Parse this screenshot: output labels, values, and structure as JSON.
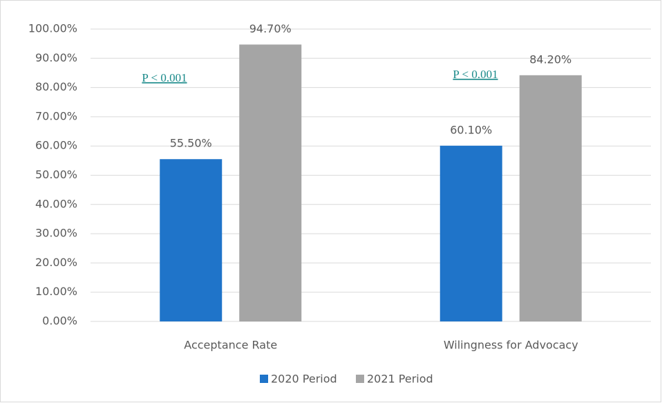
{
  "chart_data": {
    "type": "bar",
    "categories": [
      "Acceptance Rate",
      "Wilingness for Advocacy"
    ],
    "series": [
      {
        "name": "2020 Period",
        "color": "#1f74c9",
        "values": [
          55.5,
          60.1
        ],
        "value_labels": [
          "55.50%",
          "60.10%"
        ]
      },
      {
        "name": "2021 Period",
        "color": "#a5a5a5",
        "values": [
          94.7,
          84.2
        ],
        "value_labels": [
          "94.70%",
          "84.20%"
        ]
      }
    ],
    "annotations": [
      "P < 0.001",
      "P < 0.001"
    ],
    "ylim": [
      0,
      100
    ],
    "yticks": [
      {
        "value": 0,
        "label": "0.00%"
      },
      {
        "value": 10,
        "label": "10.00%"
      },
      {
        "value": 20,
        "label": "20.00%"
      },
      {
        "value": 30,
        "label": "30.00%"
      },
      {
        "value": 40,
        "label": "40.00%"
      },
      {
        "value": 50,
        "label": "50.00%"
      },
      {
        "value": 60,
        "label": "60.00%"
      },
      {
        "value": 70,
        "label": "70.00%"
      },
      {
        "value": 80,
        "label": "80.00%"
      },
      {
        "value": 90,
        "label": "90.00%"
      },
      {
        "value": 100,
        "label": "100.00%"
      }
    ],
    "grid": true,
    "legend": "bottom"
  }
}
